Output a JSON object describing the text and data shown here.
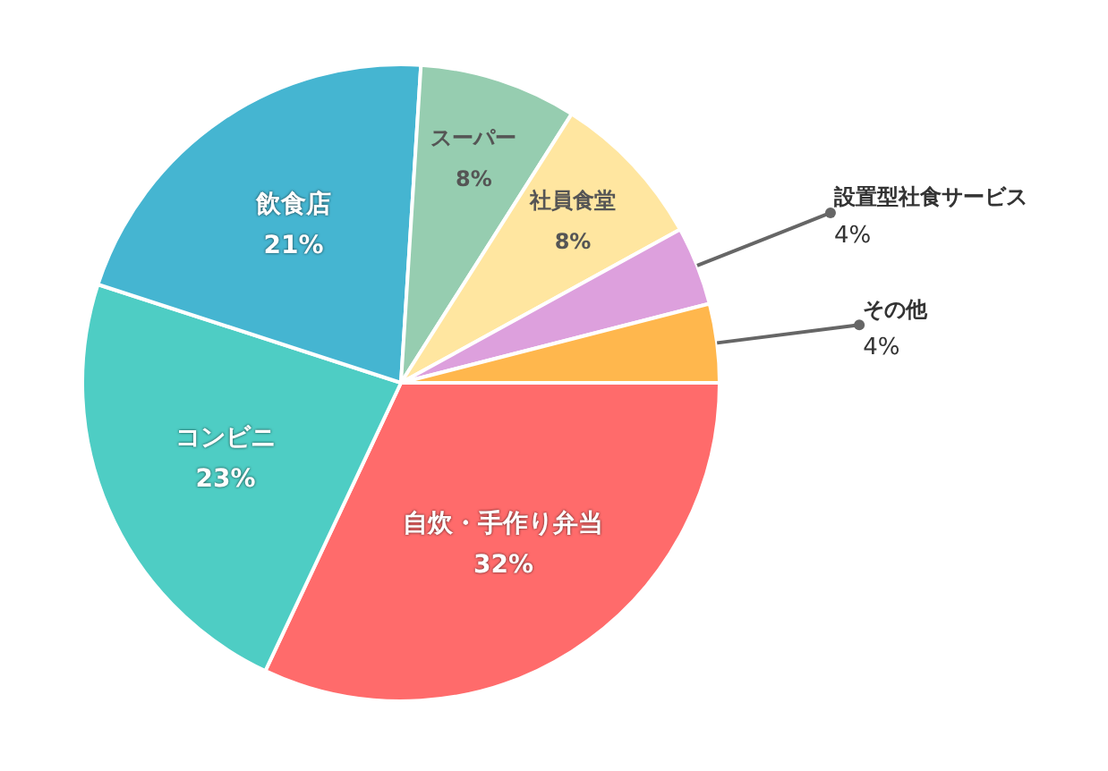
{
  "chart_data": {
    "type": "pie",
    "categories": [
      "自炊・手作り弁当",
      "コンビニ",
      "飲食店",
      "スーパー",
      "社員食堂",
      "設置型社食サービス",
      "その他"
    ],
    "values": [
      32,
      23,
      21,
      8,
      8,
      4,
      4
    ],
    "value_labels": [
      "32%",
      "23%",
      "21%",
      "8%",
      "8%",
      "4%",
      "4%"
    ],
    "colors": [
      "#ff6b6b",
      "#4ecdc4",
      "#45b5d1",
      "#96cdb0",
      "#ffe6a0",
      "#dda0dd",
      "#ffb74d"
    ],
    "legend": false
  }
}
